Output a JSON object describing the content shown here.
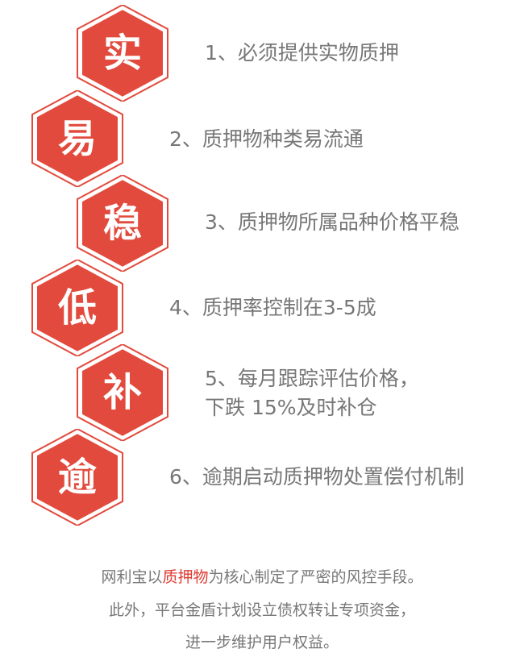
{
  "colors": {
    "hex_fill": "#e24a3d",
    "hex_border": "#e24a3d",
    "item_text": "#777777",
    "highlight": "#e03a32"
  },
  "items": [
    {
      "char": "实",
      "text": "1、必须提供实物质押"
    },
    {
      "char": "易",
      "text": "2、质押物种类易流通"
    },
    {
      "char": "稳",
      "text": "3、质押物所属品种价格平稳"
    },
    {
      "char": "低",
      "text": "4、质押率控制在3-5成"
    },
    {
      "char": "补",
      "lines": [
        "5、每月跟踪评估价格，",
        "下跌 15%及时补仓"
      ]
    },
    {
      "char": "逾",
      "text": "6、逾期启动质押物处置偿付机制"
    }
  ],
  "summary": {
    "line1_pre": "网利宝以",
    "line1_highlight": "质押物",
    "line1_post": "为核心制定了严密的风控手段。",
    "line2": "此外，平台金盾计划设立债权转让专项资金，",
    "line3": "进一步维护用户权益。"
  }
}
